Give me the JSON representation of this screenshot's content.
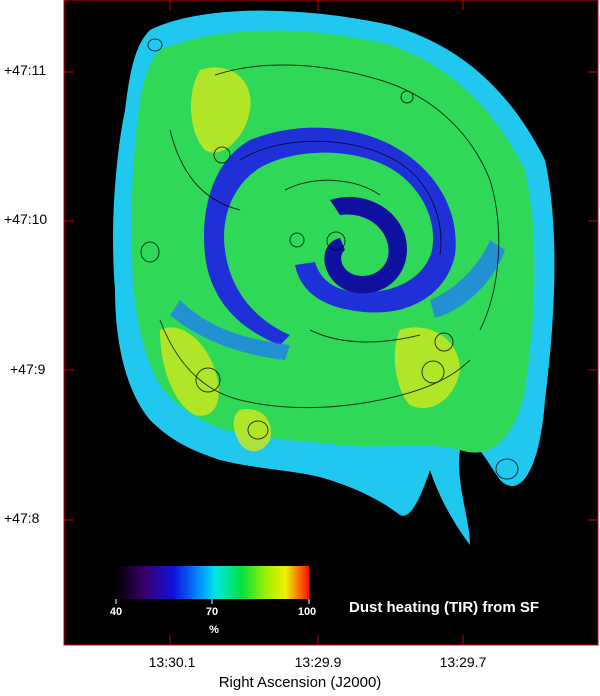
{
  "figure": {
    "y_ticks": [
      "+47:11",
      "+47:10",
      "+47:9",
      "+47:8"
    ],
    "x_ticks": [
      "13:30.1",
      "13:29.9",
      "13:29.7"
    ],
    "x_axis_title": "Right Ascension (J2000)",
    "colorbar": {
      "labels": [
        "40",
        "70",
        "100"
      ],
      "unit": "%"
    },
    "caption": "Dust heating (TIR) from SF",
    "colors": {
      "background": "#000000",
      "frame": "#cc0000"
    }
  }
}
